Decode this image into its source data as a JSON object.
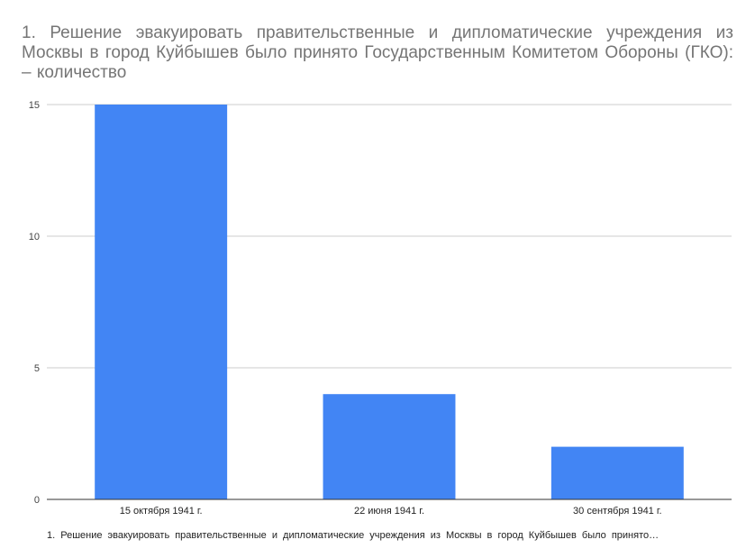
{
  "chart_data": {
    "type": "bar",
    "title": "1. Решение эвакуировать   правительственные   и дипломатические  учреждения из  Москвы  в  город   Куйбышев  было  принято   Государственным Комитетом Обороны (ГКО): – количество",
    "categories": [
      "15 октября 1941 г.",
      "22 июня 1941 г.",
      "30 сентября 1941 г."
    ],
    "series": [
      {
        "values": [
          15,
          4,
          2
        ]
      }
    ],
    "xlabel": "1. Решение эвакуировать   правительственные   и дипломатические  учреждения  из  Москвы  в  город   Куйбышев  было  принято…",
    "ylabel": "",
    "ylim": [
      0,
      15
    ],
    "yticks": [
      0,
      5,
      10,
      15
    ],
    "grid": true,
    "bar_color": "#4285f4"
  }
}
